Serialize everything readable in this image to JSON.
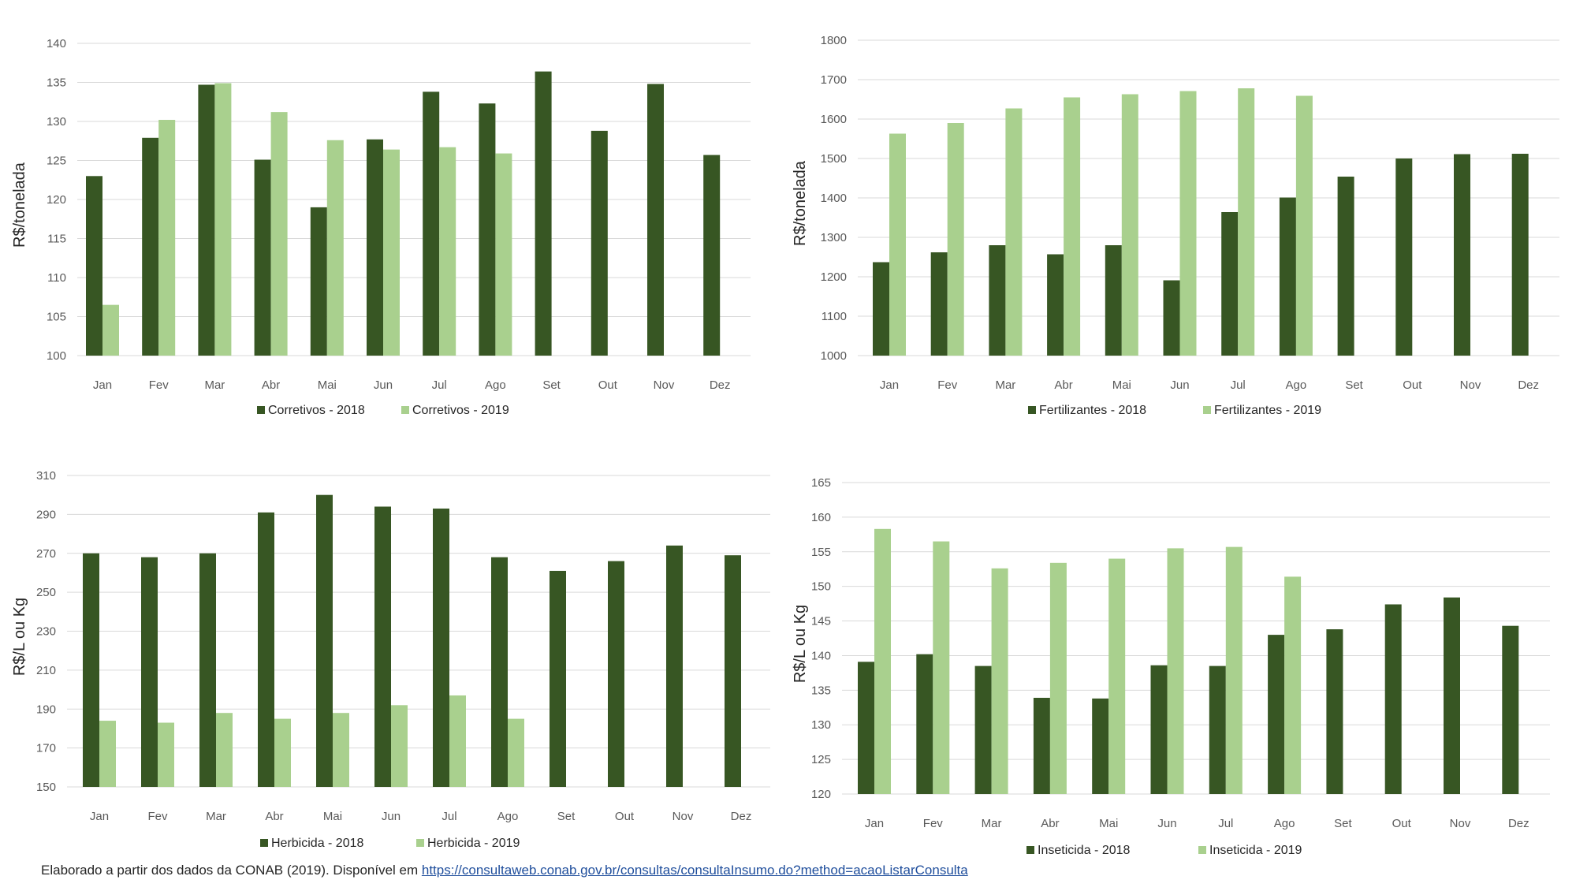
{
  "colors": {
    "series_2018": "#375623",
    "series_2019": "#a9d08e",
    "grid": "#d9d9d9",
    "text": "#595959"
  },
  "chart_data": [
    {
      "type": "bar",
      "ylabel": "R$/tonelada",
      "ylim": [
        100,
        140
      ],
      "yticks": [
        100,
        105,
        110,
        115,
        120,
        125,
        130,
        135,
        140
      ],
      "grid": true,
      "legend_position": "bottom",
      "categories": [
        "Jan",
        "Fev",
        "Mar",
        "Abr",
        "Mai",
        "Jun",
        "Jul",
        "Ago",
        "Set",
        "Out",
        "Nov",
        "Dez"
      ],
      "series": [
        {
          "name": "Corretivos - 2018",
          "values": [
            123.0,
            127.9,
            134.7,
            125.1,
            119.0,
            127.7,
            133.8,
            132.3,
            136.4,
            128.8,
            134.8,
            125.7
          ]
        },
        {
          "name": "Corretivos - 2019",
          "values": [
            106.5,
            130.2,
            134.9,
            131.2,
            127.6,
            126.4,
            126.7,
            125.9,
            null,
            null,
            null,
            null
          ]
        }
      ]
    },
    {
      "type": "bar",
      "ylabel": "R$/tonelada",
      "ylim": [
        1000,
        1800
      ],
      "yticks": [
        1000,
        1100,
        1200,
        1300,
        1400,
        1500,
        1600,
        1700,
        1800
      ],
      "grid": true,
      "legend_position": "bottom",
      "categories": [
        "Jan",
        "Fev",
        "Mar",
        "Abr",
        "Mai",
        "Jun",
        "Jul",
        "Ago",
        "Set",
        "Out",
        "Nov",
        "Dez"
      ],
      "series": [
        {
          "name": "Fertilizantes - 2018",
          "values": [
            1237,
            1262,
            1280,
            1257,
            1280,
            1191,
            1364,
            1401,
            1454,
            1500,
            1511,
            1512
          ]
        },
        {
          "name": "Fertilizantes - 2019",
          "values": [
            1563,
            1590,
            1627,
            1655,
            1663,
            1671,
            1678,
            1659,
            null,
            null,
            null,
            null
          ]
        }
      ]
    },
    {
      "type": "bar",
      "ylabel": "R$/L ou Kg",
      "ylim": [
        150,
        310
      ],
      "yticks": [
        150,
        170,
        190,
        210,
        230,
        250,
        270,
        290,
        310
      ],
      "grid": true,
      "legend_position": "bottom",
      "categories": [
        "Jan",
        "Fev",
        "Mar",
        "Abr",
        "Mai",
        "Jun",
        "Jul",
        "Ago",
        "Set",
        "Out",
        "Nov",
        "Dez"
      ],
      "series": [
        {
          "name": "Herbicida - 2018",
          "values": [
            270,
            268,
            270,
            291,
            300,
            294,
            293,
            268,
            261,
            266,
            274,
            269
          ]
        },
        {
          "name": "Herbicida - 2019",
          "values": [
            184,
            183,
            188,
            185,
            188,
            192,
            197,
            185,
            null,
            null,
            null,
            null
          ]
        }
      ]
    },
    {
      "type": "bar",
      "ylabel": "R$/L ou Kg",
      "ylim": [
        120,
        165
      ],
      "yticks": [
        120,
        125,
        130,
        135,
        140,
        145,
        150,
        155,
        160,
        165
      ],
      "grid": true,
      "legend_position": "bottom",
      "categories": [
        "Jan",
        "Fev",
        "Mar",
        "Abr",
        "Mai",
        "Jun",
        "Jul",
        "Ago",
        "Set",
        "Out",
        "Nov",
        "Dez"
      ],
      "series": [
        {
          "name": "Inseticida  - 2018",
          "values": [
            139.1,
            140.2,
            138.5,
            133.9,
            133.8,
            138.6,
            138.5,
            143.0,
            143.8,
            147.4,
            148.4,
            144.3
          ]
        },
        {
          "name": "Inseticida  - 2019",
          "values": [
            158.3,
            156.5,
            152.6,
            153.4,
            154.0,
            155.5,
            155.7,
            151.4,
            null,
            null,
            null,
            null
          ]
        }
      ]
    }
  ],
  "footer": {
    "text": "Elaborado a partir dos dados da CONAB (2019). Disponível em ",
    "link": "https://consultaweb.conab.gov.br/consultas/consultaInsumo.do?method=acaoListarConsulta"
  }
}
